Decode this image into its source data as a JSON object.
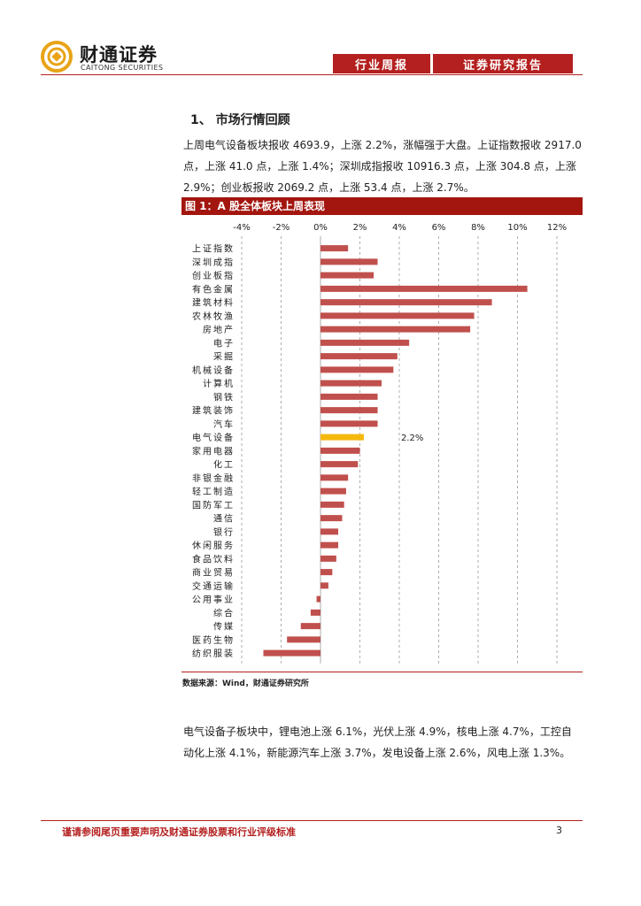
{
  "header": {
    "logo_cn": "财通证券",
    "logo_en": "CAITONG SECURITIES",
    "tab_left": "行业周报",
    "tab_right": "证券研究报告",
    "brand_color": "#b4201f"
  },
  "section": {
    "heading": "1、 市场行情回顾",
    "para1_line1": "上周电气设备板块报收 4693.9，上涨 2.2%，涨幅强于大盘。上证指数报收 2917.0",
    "para1_line2": "点，上涨 41.0 点，上涨 1.4%；深圳成指报收 10916.3 点，上涨 304.8 点，上涨",
    "para1_line3": "2.9%；创业板报收 2069.2 点，上涨 53.4 点，上涨 2.7%。",
    "para2_line1": "电气设备子板块中，锂电池上涨 6.1%，光伏上涨 4.9%，核电上涨 4.7%，工控自",
    "para2_line2": "动化上涨 4.1%，新能源汽车上涨 3.7%，发电设备上涨 2.6%，风电上涨 1.3%。"
  },
  "figure": {
    "title": "图 1：A 股全体板块上周表现",
    "source": "数据来源：Wind，财通证券研究所"
  },
  "chart_data": {
    "type": "bar",
    "orientation": "horizontal",
    "title": "图 1：A 股全体板块上周表现",
    "xlim": [
      -4,
      12
    ],
    "ticks": [
      -4,
      -2,
      0,
      2,
      4,
      6,
      8,
      10,
      12
    ],
    "tick_labels": [
      "-4%",
      "-2%",
      "0%",
      "2%",
      "4%",
      "6%",
      "8%",
      "10%",
      "12%"
    ],
    "categories": [
      "上证指数",
      "深圳成指",
      "创业板指",
      "有色金属",
      "建筑材料",
      "农林牧渔",
      "房地产",
      "电子",
      "采掘",
      "机械设备",
      "计算机",
      "钢铁",
      "建筑装饰",
      "汽车",
      "电气设备",
      "家用电器",
      "化工",
      "非银金融",
      "轻工制造",
      "国防军工",
      "通信",
      "银行",
      "休闲服务",
      "食品饮料",
      "商业贸易",
      "交通运输",
      "公用事业",
      "综合",
      "传媒",
      "医药生物",
      "纺织服装"
    ],
    "values": [
      1.4,
      2.9,
      2.7,
      10.5,
      8.7,
      7.8,
      7.6,
      4.5,
      3.9,
      3.7,
      3.1,
      2.9,
      2.9,
      2.9,
      2.2,
      2.0,
      1.9,
      1.4,
      1.3,
      1.2,
      1.1,
      0.9,
      0.9,
      0.8,
      0.6,
      0.4,
      -0.2,
      -0.5,
      -1.0,
      -1.7,
      -2.9
    ],
    "highlight_category": "电气设备",
    "highlight_label": "2.2%",
    "bar_color": "#c0504d",
    "highlight_color": "#f5b80e",
    "grid": "vertical dashed"
  },
  "footer": {
    "disclaimer": "谨请参阅尾页重要声明及财通证券股票和行业评级标准",
    "page_number": "3"
  }
}
